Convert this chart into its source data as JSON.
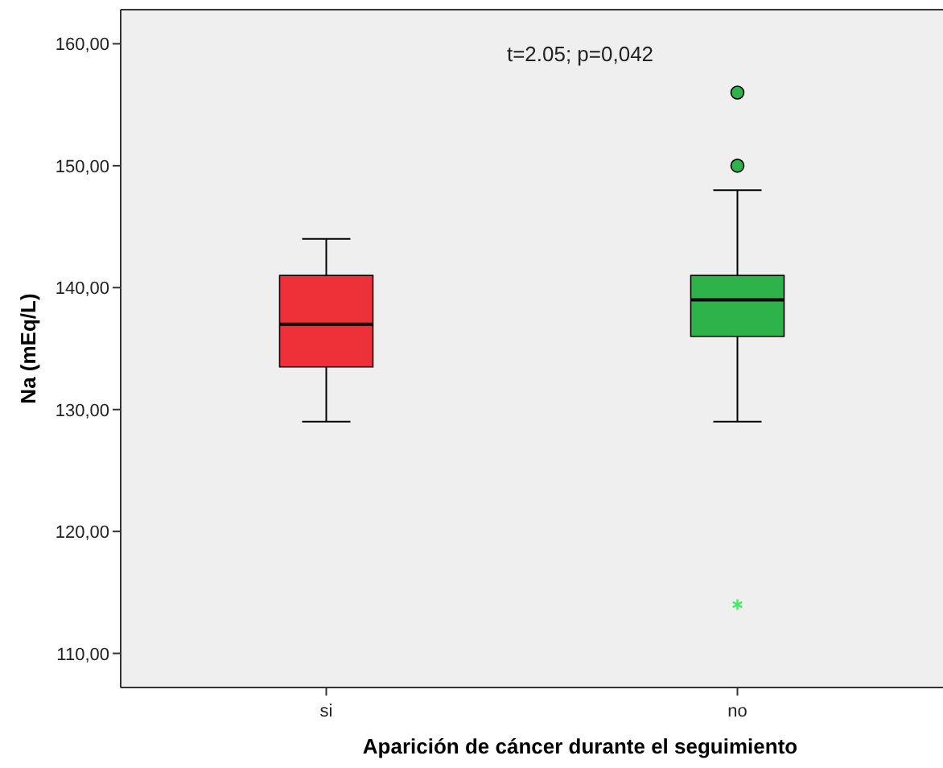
{
  "chart_data": {
    "type": "box",
    "xlabel": "Aparición de cáncer durante el seguimiento",
    "ylabel": "Na (mEq/L)",
    "annotations": [
      "t=2.05; p=0,042"
    ],
    "categories": [
      "si",
      "no"
    ],
    "colors": [
      "#ee3038",
      "#2db34a"
    ],
    "boxes": [
      {
        "low": 129,
        "q1": 133.5,
        "median": 137,
        "q3": 141,
        "high": 144
      },
      {
        "low": 129,
        "q1": 136,
        "median": 139,
        "q3": 141,
        "high": 148,
        "outliers": [
          150,
          156,
          114
        ]
      }
    ],
    "ylim": [
      107.2,
      162.8
    ],
    "yticks": [
      {
        "value": 110,
        "label": "110,00"
      },
      {
        "value": 120,
        "label": "120,00"
      },
      {
        "value": 130,
        "label": "130,00"
      },
      {
        "value": 140,
        "label": "140,00"
      },
      {
        "value": 150,
        "label": "150,00"
      },
      {
        "value": 160,
        "label": "160,00"
      }
    ],
    "grid": false
  }
}
